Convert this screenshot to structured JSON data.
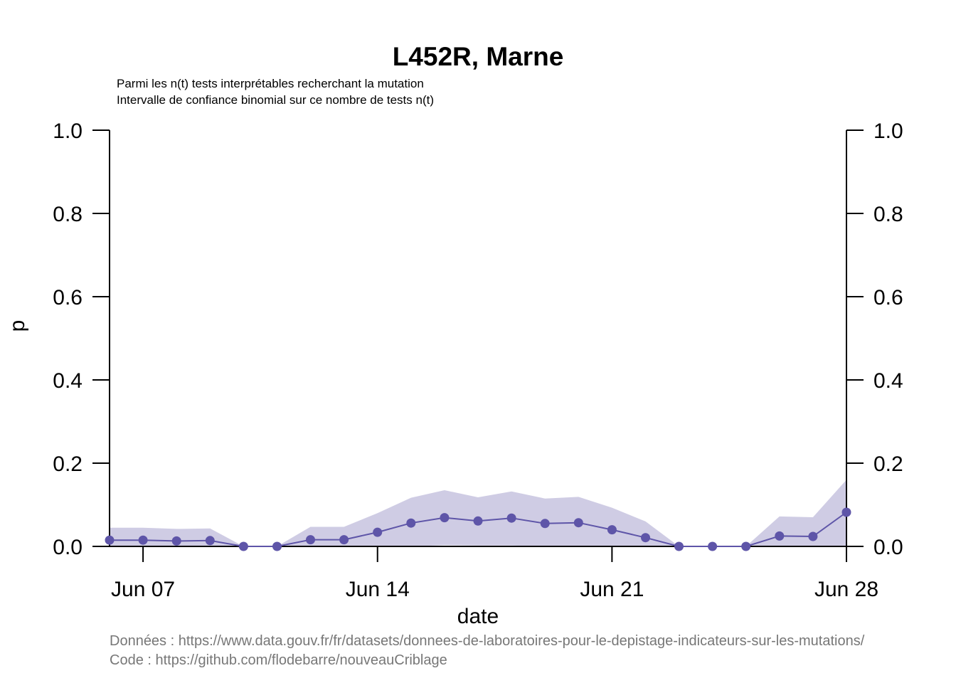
{
  "chart_data": {
    "type": "line",
    "title": "L452R, Marne",
    "subtitle_lines": [
      "Parmi les n(t) tests interprétables recherchant la mutation",
      "Intervalle de confiance binomial sur ce nombre de tests n(t)"
    ],
    "xlabel": "date",
    "ylabel": "p",
    "ylim": [
      0.0,
      1.0
    ],
    "y_ticks": [
      "0.0",
      "0.2",
      "0.4",
      "0.6",
      "0.8",
      "1.0"
    ],
    "x_ticks": [
      {
        "date": "2021-06-07",
        "label": "Jun 07"
      },
      {
        "date": "2021-06-14",
        "label": "Jun 14"
      },
      {
        "date": "2021-06-21",
        "label": "Jun 21"
      },
      {
        "date": "2021-06-28",
        "label": "Jun 28"
      }
    ],
    "xlim": [
      "2021-06-06",
      "2021-06-28"
    ],
    "grid": false,
    "series": [
      {
        "color": "#5e55a8",
        "band_color": "#cfcce4",
        "x": [
          "2021-06-06",
          "2021-06-07",
          "2021-06-08",
          "2021-06-09",
          "2021-06-10",
          "2021-06-11",
          "2021-06-12",
          "2021-06-13",
          "2021-06-14",
          "2021-06-15",
          "2021-06-16",
          "2021-06-17",
          "2021-06-18",
          "2021-06-19",
          "2021-06-20",
          "2021-06-21",
          "2021-06-22",
          "2021-06-23",
          "2021-06-24",
          "2021-06-25",
          "2021-06-26",
          "2021-06-27",
          "2021-06-28"
        ],
        "p": [
          0.015,
          0.015,
          0.013,
          0.014,
          0.0,
          0.0,
          0.016,
          0.016,
          0.034,
          0.056,
          0.069,
          0.061,
          0.068,
          0.055,
          0.057,
          0.04,
          0.021,
          0.0,
          0.0,
          0.0,
          0.025,
          0.024,
          0.082
        ],
        "lower": [
          0.0,
          0.0,
          0.0,
          0.0,
          0.0,
          0.0,
          0.0,
          0.0,
          0.0,
          0.0,
          0.003,
          0.002,
          0.002,
          0.0,
          0.0,
          0.0,
          0.0,
          0.0,
          0.0,
          0.0,
          0.0,
          0.0,
          0.0
        ],
        "upper": [
          0.045,
          0.045,
          0.042,
          0.043,
          0.0,
          0.0,
          0.047,
          0.047,
          0.08,
          0.117,
          0.135,
          0.118,
          0.132,
          0.115,
          0.119,
          0.093,
          0.06,
          0.0,
          0.0,
          0.0,
          0.072,
          0.07,
          0.16
        ]
      }
    ]
  },
  "footer": {
    "data_line": "Données : https://www.data.gouv.fr/fr/datasets/donnees-de-laboratoires-pour-le-depistage-indicateurs-sur-les-mutations/",
    "code_line": "Code : https://github.com/flodebarre/nouveauCriblage"
  }
}
